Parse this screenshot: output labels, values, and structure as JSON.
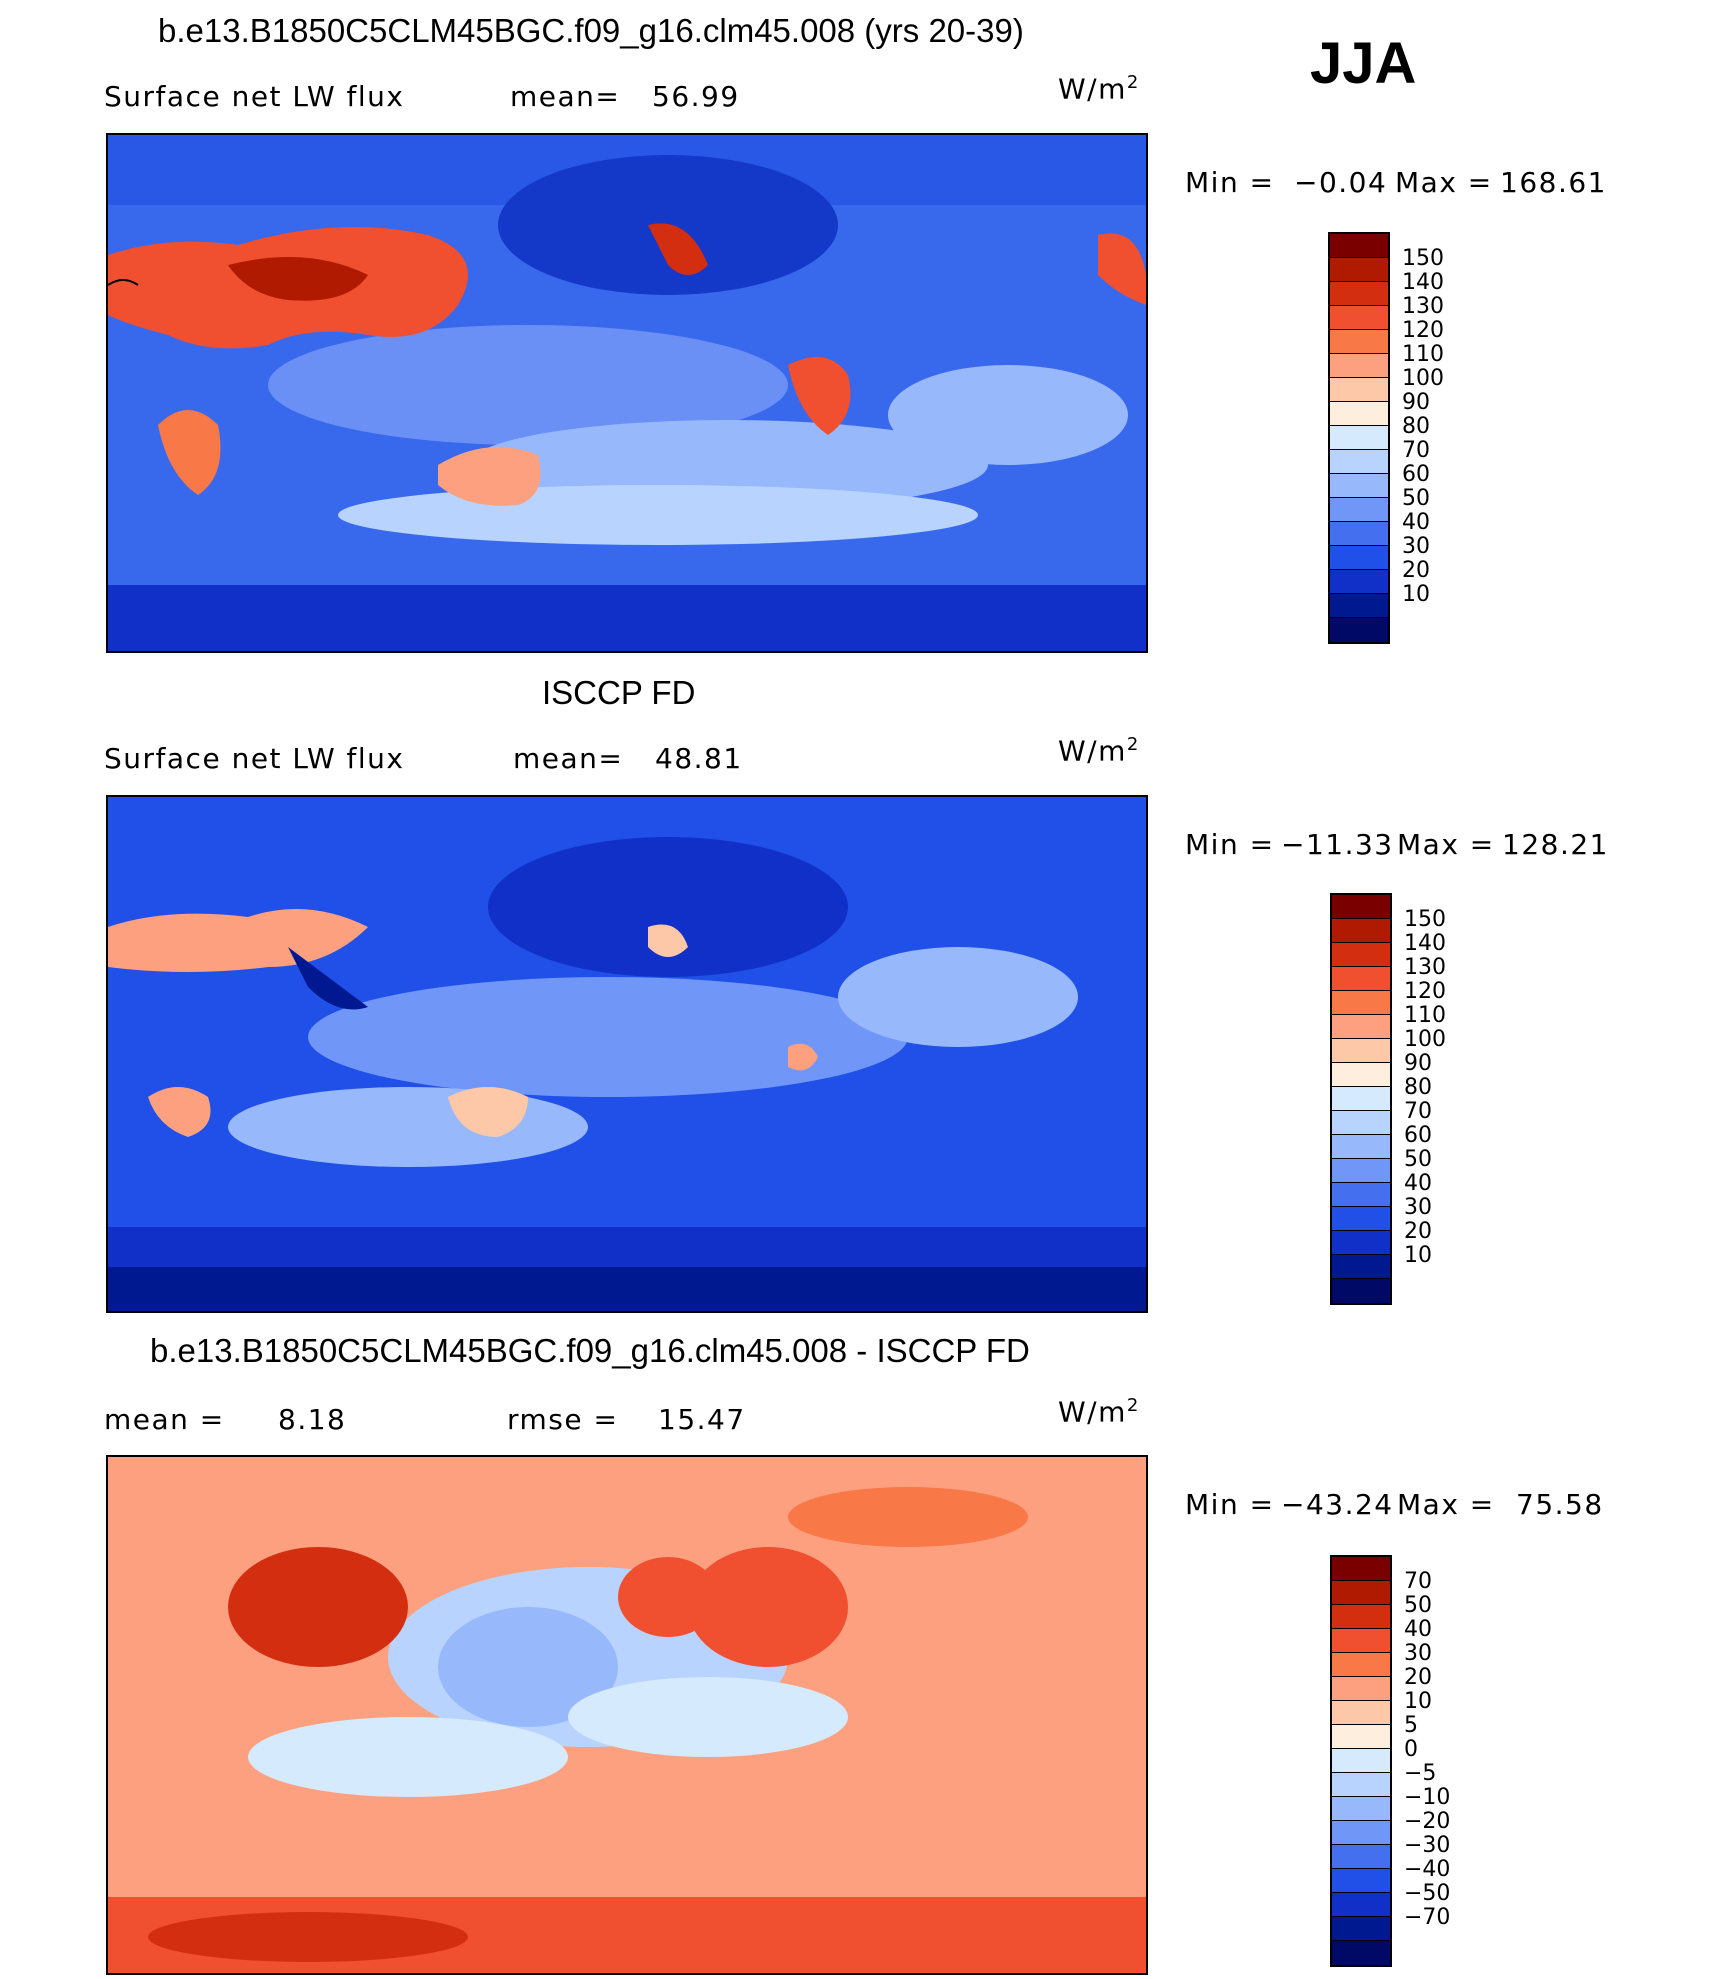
{
  "season": "JJA",
  "chart_data": [
    {
      "type": "heatmap",
      "title": "b.e13.B1850C5CLM45BGC.f09_g16.clm45.008 (yrs 20-39)",
      "left_label": "Surface net LW flux",
      "stat1_label": "mean=",
      "stat1_value": "56.99",
      "units_base": "W/m",
      "units_exp": "2",
      "min_label": "Min =",
      "min_value": "−0.04",
      "max_label": "Max =",
      "max_value": "168.61",
      "colorbar": [
        "150",
        "140",
        "130",
        "120",
        "110",
        "100",
        "90",
        "80",
        "70",
        "60",
        "50",
        "40",
        "30",
        "20",
        "10"
      ],
      "colors": [
        "#7a0000",
        "#b01a00",
        "#d42e10",
        "#f05030",
        "#f87848",
        "#fca080",
        "#fdc8a8",
        "#feeedd",
        "#d6eafe",
        "#b8d4fe",
        "#98b8fc",
        "#7096f8",
        "#4470f0",
        "#2050e8",
        "#1030c8",
        "#001890",
        "#000a66"
      ]
    },
    {
      "type": "heatmap",
      "title": "ISCCP FD",
      "left_label": "Surface net LW flux",
      "stat1_label": "mean=",
      "stat1_value": "48.81",
      "units_base": "W/m",
      "units_exp": "2",
      "min_label": "Min =",
      "min_value": "−11.33",
      "max_label": "Max =",
      "max_value": "128.21",
      "colorbar": [
        "150",
        "140",
        "130",
        "120",
        "110",
        "100",
        "90",
        "80",
        "70",
        "60",
        "50",
        "40",
        "30",
        "20",
        "10"
      ],
      "colors": [
        "#7a0000",
        "#b01a00",
        "#d42e10",
        "#f05030",
        "#f87848",
        "#fca080",
        "#fdc8a8",
        "#feeedd",
        "#d6eafe",
        "#b8d4fe",
        "#98b8fc",
        "#7096f8",
        "#4470f0",
        "#2050e8",
        "#1030c8",
        "#001890",
        "#000a66"
      ]
    },
    {
      "type": "heatmap",
      "title": "b.e13.B1850C5CLM45BGC.f09_g16.clm45.008 - ISCCP FD",
      "left_label": "mean =",
      "left_value": "8.18",
      "stat1_label": "rmse =",
      "stat1_value": "15.47",
      "units_base": "W/m",
      "units_exp": "2",
      "min_label": "Min =",
      "min_value": "−43.24",
      "max_label": "Max =",
      "max_value": "75.58",
      "colorbar": [
        "70",
        "50",
        "40",
        "30",
        "20",
        "10",
        "5",
        "0",
        "−5",
        "−10",
        "−20",
        "−30",
        "−40",
        "−50",
        "−70"
      ],
      "colors": [
        "#7a0000",
        "#b01a00",
        "#d42e10",
        "#f05030",
        "#f87848",
        "#fca080",
        "#fdc8a8",
        "#feeedd",
        "#d6eafe",
        "#b8d4fe",
        "#98b8fc",
        "#7096f8",
        "#4470f0",
        "#2050e8",
        "#1030c8",
        "#001890",
        "#000a66"
      ]
    }
  ]
}
